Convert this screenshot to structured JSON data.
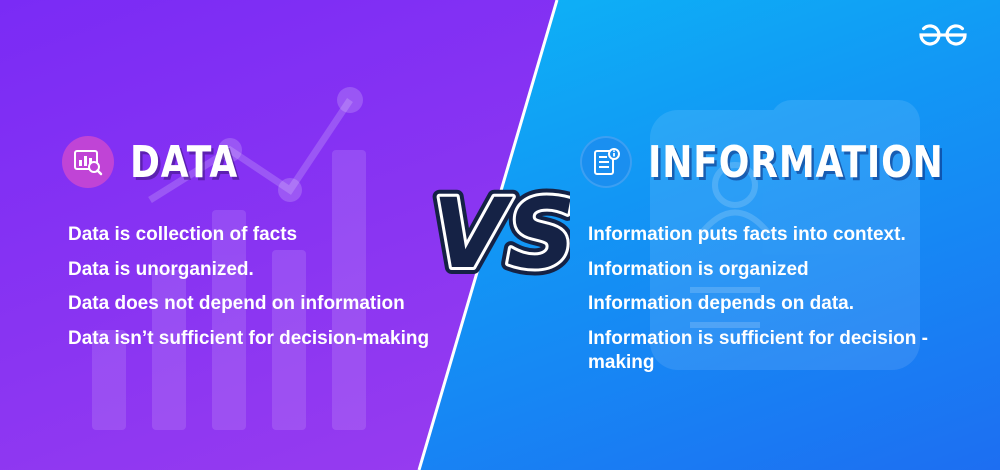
{
  "brand": {
    "logo_icon": "geeksforgeeks-logo-icon",
    "left_color": "#8a35f2",
    "right_color": "#1297f5"
  },
  "left": {
    "title": "DATA",
    "icon": "data-analytics-icon",
    "items": [
      "Data is collection of facts",
      "Data is unorganized.",
      "Data does not depend on information",
      "Data isn’t sufficient for decision-making"
    ]
  },
  "center": {
    "vs_text": "VS"
  },
  "right": {
    "title": "INFORMATION",
    "icon": "information-document-icon",
    "items": [
      "Information puts facts into context.",
      "Information is organized",
      "Information depends on data.",
      "Information is sufficient for decision -making"
    ]
  }
}
